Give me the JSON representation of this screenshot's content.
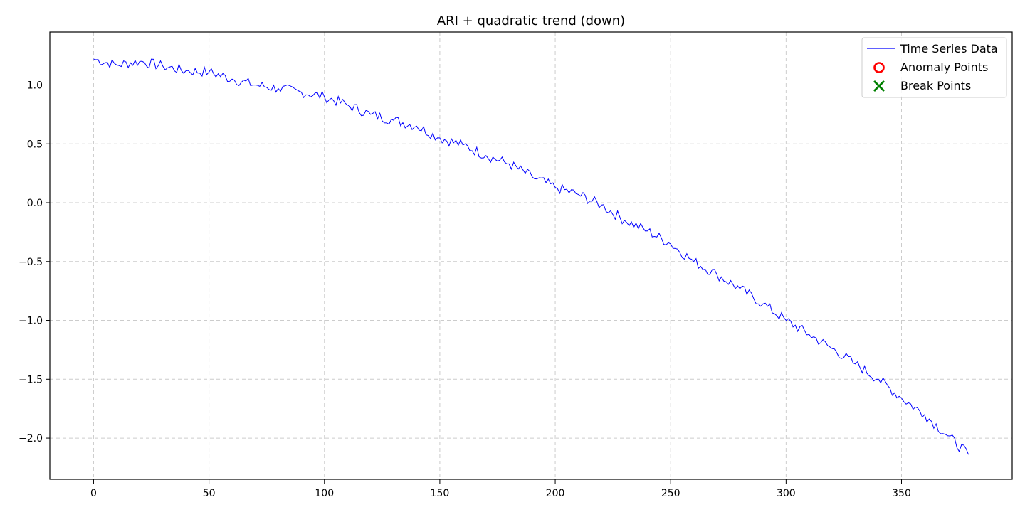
{
  "chart_data": {
    "type": "line",
    "title": "ARI + quadratic trend (down)",
    "xlabel": "",
    "ylabel": "",
    "xlim": [
      -18.95,
      397.95
    ],
    "ylim": [
      -2.35,
      1.45
    ],
    "xticks": [
      0,
      50,
      100,
      150,
      200,
      250,
      300,
      350
    ],
    "yticks": [
      -2.0,
      -1.5,
      -1.0,
      -0.5,
      0.0,
      0.5,
      1.0
    ],
    "xtick_labels": [
      "0",
      "50",
      "100",
      "150",
      "200",
      "250",
      "300",
      "350"
    ],
    "ytick_labels": [
      "−2.0",
      "−1.5",
      "−1.0",
      "−0.5",
      "0.0",
      "0.5",
      "1.0"
    ],
    "grid": true,
    "legend": "top-right",
    "legend_entries": [
      {
        "label": "Time Series Data",
        "marker": "line",
        "color": "#0000ff"
      },
      {
        "label": "Anomaly Points",
        "marker": "circle",
        "color": "#ff0000"
      },
      {
        "label": "Break Points",
        "marker": "x",
        "color": "#008000"
      }
    ],
    "series": [
      {
        "name": "Time Series Data",
        "color": "#0000ff",
        "x": [
          0,
          10,
          20,
          30,
          40,
          50,
          60,
          70,
          80,
          90,
          100,
          110,
          120,
          130,
          140,
          150,
          160,
          170,
          180,
          190,
          200,
          210,
          220,
          230,
          240,
          250,
          260,
          270,
          280,
          290,
          300,
          310,
          320,
          330,
          340,
          350,
          360,
          370,
          379
        ],
        "y": [
          1.22,
          1.17,
          1.2,
          1.16,
          1.12,
          1.11,
          1.05,
          1.0,
          0.97,
          0.94,
          0.9,
          0.83,
          0.75,
          0.7,
          0.65,
          0.55,
          0.49,
          0.4,
          0.33,
          0.22,
          0.13,
          0.07,
          -0.02,
          -0.15,
          -0.24,
          -0.35,
          -0.5,
          -0.61,
          -0.73,
          -0.86,
          -1.0,
          -1.12,
          -1.24,
          -1.37,
          -1.5,
          -1.66,
          -1.8,
          -1.98,
          -2.14
        ]
      },
      {
        "name": "Anomaly Points",
        "color": "#ff0000",
        "x": [],
        "y": []
      },
      {
        "name": "Break Points",
        "color": "#008000",
        "x": [],
        "y": []
      }
    ]
  }
}
